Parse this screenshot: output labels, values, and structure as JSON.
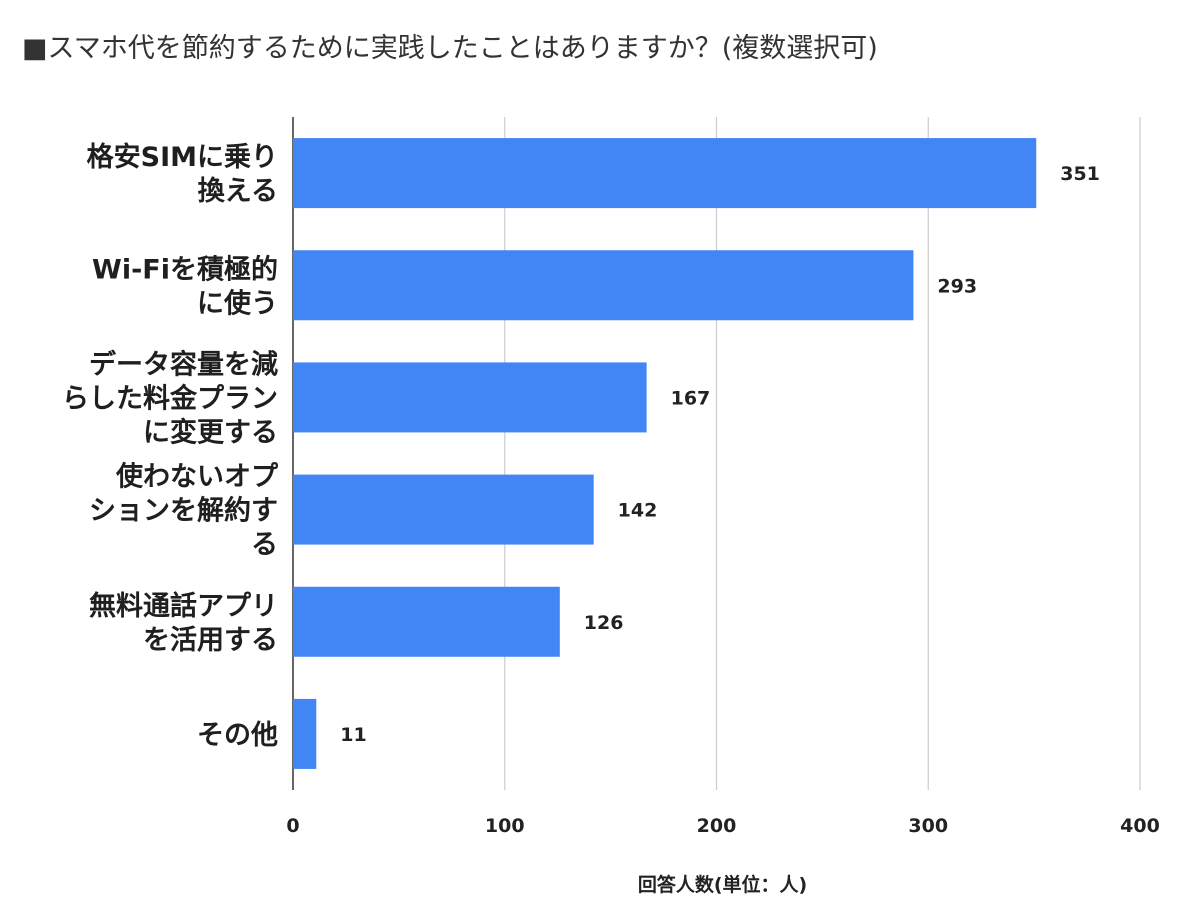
{
  "chart_data": {
    "type": "bar",
    "orientation": "horizontal",
    "title": "■スマホ代を節約するために実践したことはありますか？(複数選択可)",
    "categories": [
      [
        "格安SIMに乗り",
        "換える"
      ],
      [
        "Wi-Fiを積極的",
        "に使う"
      ],
      [
        "データ容量を減",
        "らした料金プラン",
        "に変更する"
      ],
      [
        "使わないオプ",
        "ションを解約す",
        "る"
      ],
      [
        "無料通話アプリ",
        "を活用する"
      ],
      [
        "その他"
      ]
    ],
    "values": [
      351,
      293,
      167,
      142,
      126,
      11
    ],
    "xlabel": "回答人数(単位：人)",
    "ylabel": "",
    "xlim": [
      0,
      400
    ],
    "xticks": [
      0,
      100,
      200,
      300,
      400
    ],
    "grid": true,
    "legend": "none",
    "bar_color": "#4285f4",
    "grid_color": "#cccccc"
  }
}
